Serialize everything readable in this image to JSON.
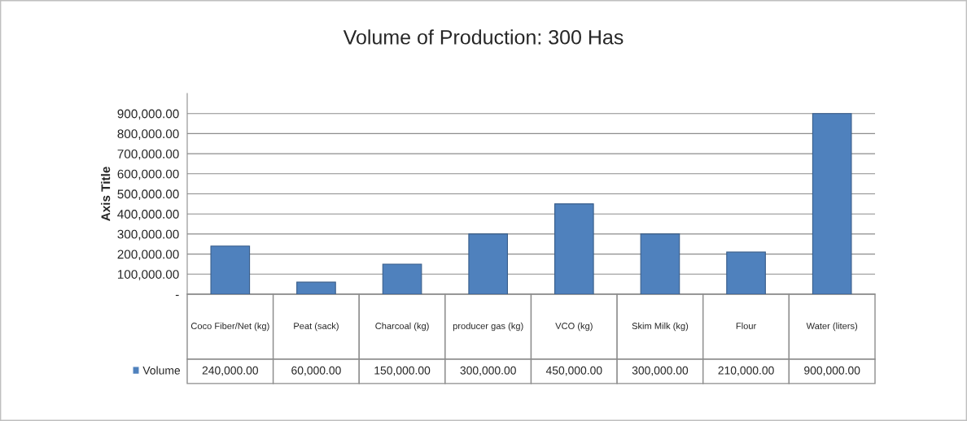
{
  "chart_data": {
    "type": "bar",
    "title": "Volume of Production: 300 Has",
    "ylabel": "Axis Title",
    "categories": [
      "Coco Fiber/Net (kg)",
      "Peat (sack)",
      "Charcoal (kg)",
      "producer gas (kg)",
      "VCO (kg)",
      "Skim Milk (kg)",
      "Flour",
      "Water (liters)"
    ],
    "series": [
      {
        "name": "Volume",
        "color": "#4f81bd",
        "values": [
          240000,
          60000,
          150000,
          300000,
          450000,
          300000,
          210000,
          900000
        ],
        "value_labels": [
          "240,000.00",
          "60,000.00",
          "150,000.00",
          "300,000.00",
          "450,000.00",
          "300,000.00",
          "210,000.00",
          "900,000.00"
        ]
      }
    ],
    "ylim": [
      0,
      1000000
    ],
    "yticks": [
      {
        "value": 0,
        "label": "-"
      },
      {
        "value": 100000,
        "label": "100,000.00"
      },
      {
        "value": 200000,
        "label": "200,000.00"
      },
      {
        "value": 300000,
        "label": "300,000.00"
      },
      {
        "value": 400000,
        "label": "400,000.00"
      },
      {
        "value": 500000,
        "label": "500,000.00"
      },
      {
        "value": 600000,
        "label": "600,000.00"
      },
      {
        "value": 700000,
        "label": "700,000.00"
      },
      {
        "value": 800000,
        "label": "800,000.00"
      },
      {
        "value": 900000,
        "label": "900,000.00"
      }
    ],
    "grid": "y",
    "legend": "bottom left"
  }
}
